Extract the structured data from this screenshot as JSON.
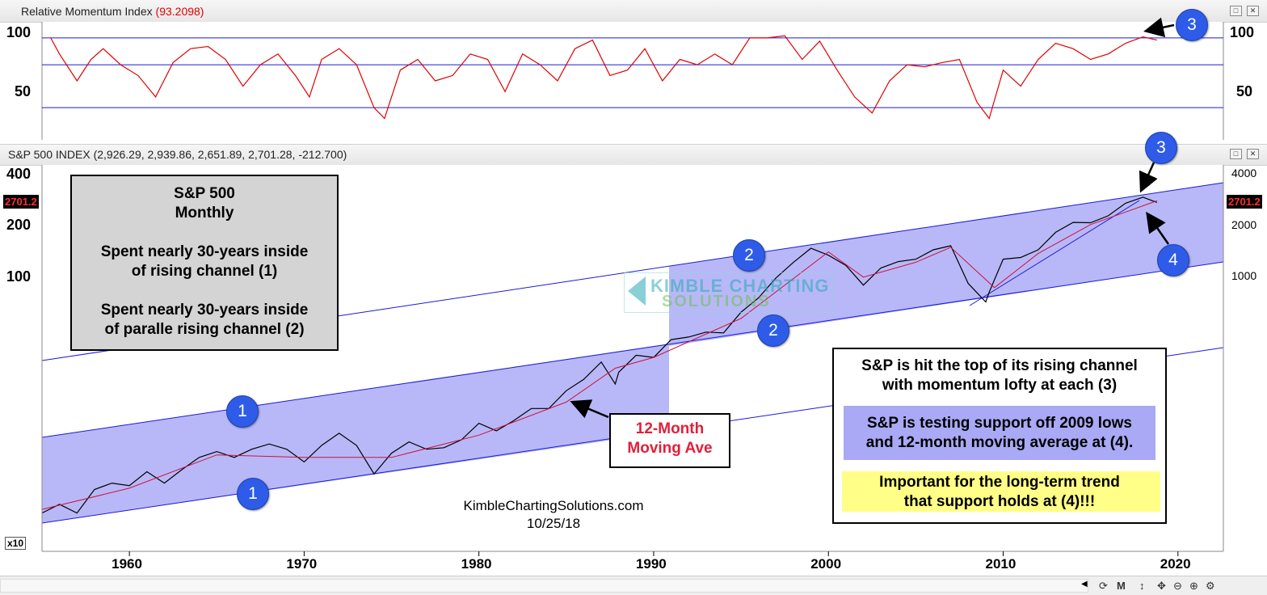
{
  "momentum_panel": {
    "title": "Relative Momentum Index",
    "value": "(93.2098)",
    "axis_left": [
      "100",
      "50"
    ],
    "axis_right": [
      "100",
      "50"
    ]
  },
  "price_panel": {
    "title": "S&P 500 INDEX (2,926.29, 2,939.86, 2,651.89, 2,701.28, -212.700)",
    "axis_left": [
      "400",
      "200",
      "100"
    ],
    "axis_right": [
      "4000",
      "2000",
      "1000"
    ],
    "price_tag": "2701.2",
    "scale_label": "x10"
  },
  "annotations": {
    "box1_title": "S&P 500",
    "box1_subtitle": "Monthly",
    "box1_line1a": "Spent nearly 30-years inside",
    "box1_line1b": "of rising channel (1)",
    "box1_line2a": "Spent nearly 30-years inside",
    "box1_line2b": "of paralle rising channel (2)",
    "ma_line1": "12-Month",
    "ma_line2": "Moving Ave",
    "right_line1": "S&P is hit the top of its rising channel",
    "right_line2": "with momentum lofty at each (3)",
    "right_line3": "S&P is testing support off 2009 lows",
    "right_line4": "and 12-month moving average at (4).",
    "right_line5": "Important for the long-term trend",
    "right_line6": "that support holds at (4)!!!",
    "credit": "KimbleChartingSolutions.com",
    "date": "10/25/18",
    "watermark_line1": "KIMBLE CHARTING",
    "watermark_line2": "SOLUTIONS",
    "n1": "1",
    "n2": "2",
    "n3": "3",
    "n4": "4"
  },
  "x_axis_labels": [
    "1960",
    "1970",
    "1980",
    "1990",
    "2000",
    "2010",
    "2020"
  ],
  "status_icons": [
    "refresh-icon",
    "m-icon",
    "vertical-scale-icon",
    "move-icon",
    "zoom-out-icon",
    "zoom-in-icon",
    "settings-icon"
  ],
  "chart_data": [
    {
      "type": "line",
      "title": "Relative Momentum Index",
      "series": [
        {
          "name": "Relative Momentum Index",
          "x": [
            1955.5,
            1956,
            1957,
            1957.8,
            1958.5,
            1959.5,
            1960.5,
            1961.5,
            1962.5,
            1963.5,
            1964.5,
            1965.5,
            1966.5,
            1967.5,
            1968.5,
            1969.5,
            1970.3,
            1971,
            1972,
            1973,
            1974,
            1974.6,
            1975.5,
            1976.5,
            1977.5,
            1978.5,
            1979.5,
            1980.5,
            1981.5,
            1982.5,
            1983.5,
            1984.5,
            1985.5,
            1986.5,
            1987.5,
            1988.5,
            1989.5,
            1990.5,
            1991.5,
            1992.5,
            1993.5,
            1994.5,
            1995.5,
            1996.5,
            1997.5,
            1998.5,
            1999.5,
            2000.5,
            2001.5,
            2002.5,
            2003.5,
            2004.5,
            2005.5,
            2006.5,
            2007.5,
            2008.5,
            2009.2,
            2010,
            2011,
            2012,
            2013,
            2014,
            2015,
            2016,
            2017,
            2018,
            2018.8
          ],
          "values": [
            95,
            80,
            55,
            75,
            85,
            70,
            60,
            40,
            72,
            85,
            87,
            75,
            50,
            70,
            80,
            60,
            40,
            75,
            85,
            70,
            30,
            20,
            65,
            75,
            55,
            60,
            80,
            75,
            45,
            80,
            70,
            55,
            85,
            93,
            60,
            65,
            85,
            55,
            75,
            70,
            80,
            70,
            95,
            95,
            97,
            75,
            92,
            65,
            40,
            25,
            55,
            70,
            68,
            72,
            75,
            35,
            20,
            65,
            50,
            75,
            90,
            85,
            75,
            80,
            90,
            96,
            93
          ]
        }
      ],
      "ylim": [
        0,
        110
      ],
      "reference_lines": [
        95,
        70,
        30
      ]
    },
    {
      "type": "line",
      "title": "S&P 500 INDEX",
      "y_scale": "log",
      "series": [
        {
          "name": "S&P 500 INDEX",
          "x": [
            1955,
            1956,
            1957,
            1958,
            1959,
            1960,
            1961,
            1962,
            1963,
            1964,
            1965,
            1966,
            1967,
            1968,
            1969,
            1970,
            1971,
            1972,
            1973,
            1974,
            1975,
            1976,
            1977,
            1978,
            1979,
            1980,
            1981,
            1982,
            1983,
            1984,
            1985,
            1986,
            1987,
            1987.8,
            1988,
            1989,
            1990,
            1991,
            1992,
            1993,
            1994,
            1995,
            1996,
            1997,
            1998,
            1999,
            2000,
            2001,
            2002,
            2003,
            2004,
            2005,
            2006,
            2007,
            2008,
            2009,
            2009.2,
            2010,
            2011,
            2012,
            2013,
            2014,
            2015,
            2016,
            2017,
            2018,
            2018.8
          ],
          "values": [
            40,
            45,
            40,
            55,
            60,
            58,
            70,
            60,
            72,
            85,
            92,
            85,
            95,
            102,
            95,
            80,
            100,
            118,
            100,
            68,
            90,
            105,
            95,
            97,
            108,
            135,
            122,
            140,
            165,
            165,
            210,
            245,
            310,
            230,
            270,
            340,
            330,
            420,
            435,
            465,
            460,
            610,
            740,
            970,
            1200,
            1450,
            1320,
            1150,
            880,
            1110,
            1210,
            1250,
            1420,
            1500,
            900,
            700,
            800,
            1250,
            1280,
            1420,
            1800,
            2060,
            2050,
            2250,
            2670,
            2900,
            2701
          ]
        },
        {
          "name": "12-Month Moving Ave",
          "x": [
            1955,
            1960,
            1965,
            1970,
            1975,
            1980,
            1985,
            1987.8,
            1990,
            1995,
            2000,
            2002,
            2005,
            2007,
            2009.5,
            2012,
            2015,
            2018.8
          ],
          "values": [
            42,
            56,
            88,
            85,
            85,
            115,
            180,
            285,
            330,
            560,
            1380,
            980,
            1200,
            1470,
            850,
            1350,
            2000,
            2760
          ]
        }
      ],
      "ylim": [
        30,
        4500
      ]
    }
  ]
}
